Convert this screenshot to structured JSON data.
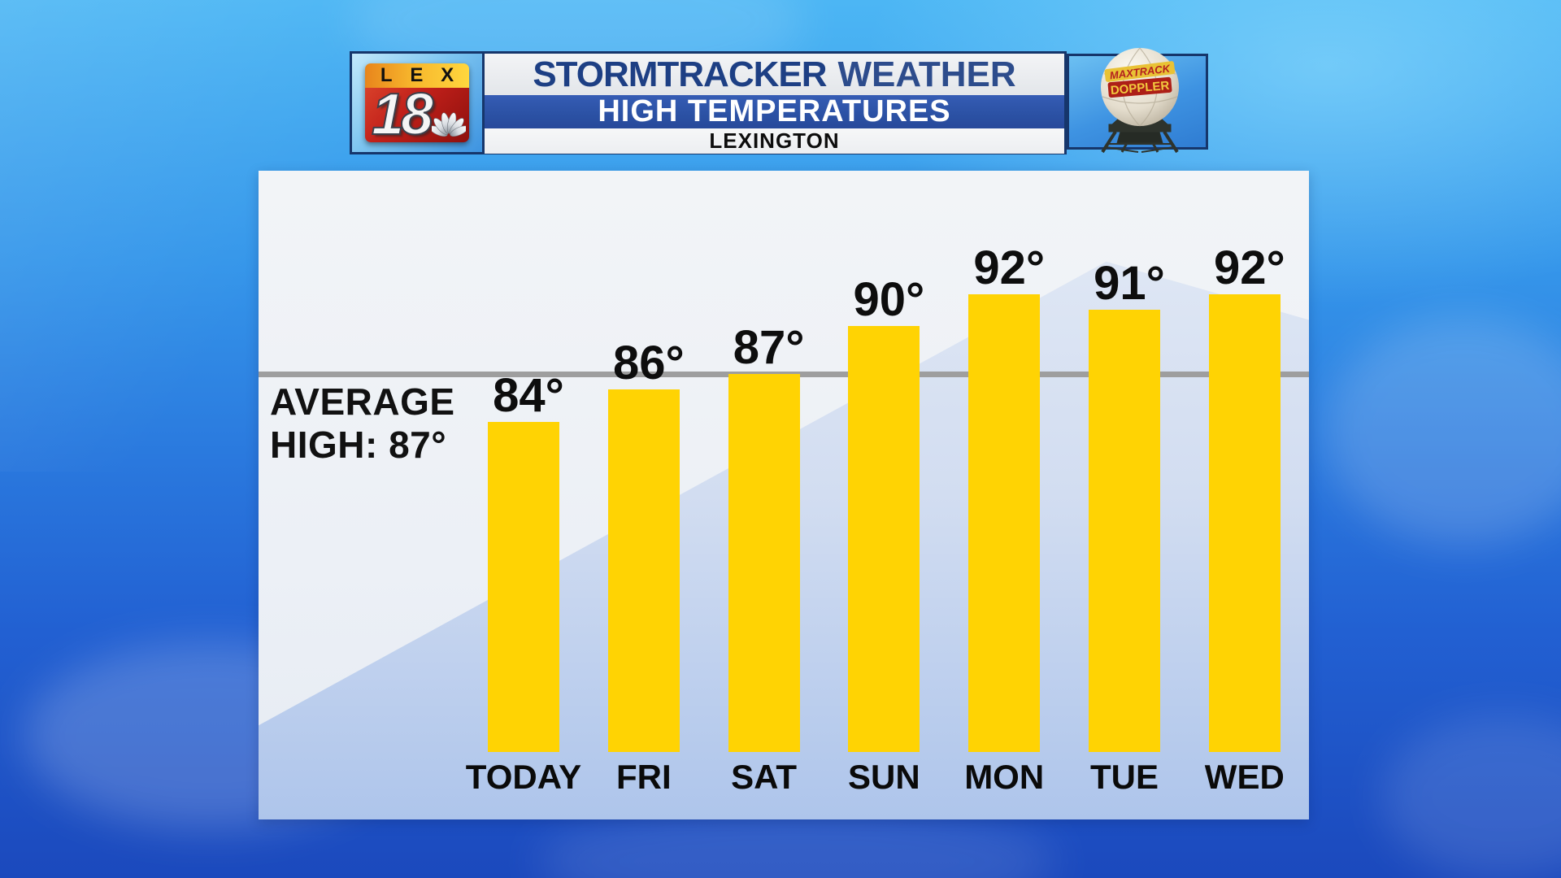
{
  "header": {
    "logo": {
      "call_letters": "LEX",
      "channel_number": "18",
      "icon": "nbc-peacock-icon"
    },
    "title_primary": "STORMTRACKER",
    "title_secondary": "WEATHER",
    "banner": "HIGH TEMPERATURES",
    "location": "LEXINGTON",
    "radar_ball": {
      "line1": "MAXTRACK",
      "line2": "DOPPLER"
    }
  },
  "chart_data": {
    "type": "bar",
    "title": "HIGH TEMPERATURES",
    "subtitle": "LEXINGTON",
    "categories": [
      "TODAY",
      "FRI",
      "SAT",
      "SUN",
      "MON",
      "TUE",
      "WED"
    ],
    "values": [
      84,
      86,
      87,
      90,
      92,
      91,
      92
    ],
    "unit": "°",
    "value_labels": [
      "84°",
      "86°",
      "87°",
      "90°",
      "92°",
      "91°",
      "92°"
    ],
    "reference_line": {
      "value": 87,
      "label_line1": "AVERAGE",
      "label_line2": "HIGH: 87°",
      "color": "#9e9e9e"
    },
    "bar_color": "#FFD303",
    "label_color": "#0d0d0d",
    "xlabel": "",
    "ylabel": "",
    "ylim_implied": [
      63,
      95
    ],
    "grid": false,
    "legend": "none"
  },
  "colors": {
    "sky_top": "#4cb6f4",
    "sky_bottom": "#1b49bd",
    "header_border": "#16366b",
    "banner_blue": "#2b51a4",
    "title_navy": "#1d3f84",
    "panel_light": "#f0f2f6",
    "panel_blue": "#aec6ec",
    "bar_yellow": "#FFD303",
    "logo_red": "#c1201a",
    "logo_yellow": "#f7b62c"
  }
}
